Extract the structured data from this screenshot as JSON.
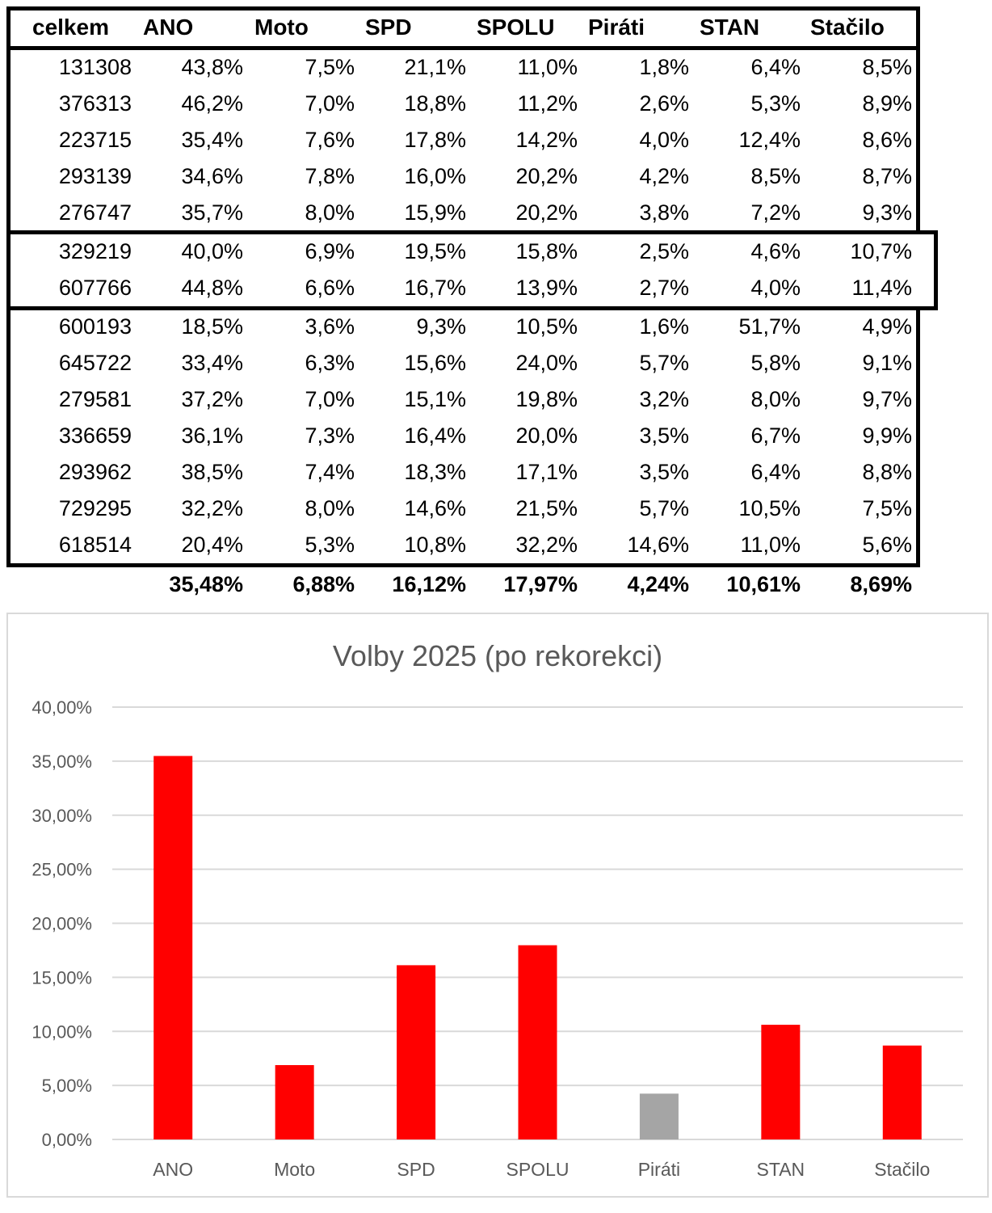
{
  "table": {
    "headers": [
      "celkem",
      "ANO",
      "Moto",
      "SPD",
      "SPOLU",
      "Piráti",
      "STAN",
      "Stačilo"
    ],
    "rows": [
      [
        "131308",
        "43,8%",
        "7,5%",
        "21,1%",
        "11,0%",
        "1,8%",
        "6,4%",
        "8,5%"
      ],
      [
        "376313",
        "46,2%",
        "7,0%",
        "18,8%",
        "11,2%",
        "2,6%",
        "5,3%",
        "8,9%"
      ],
      [
        "223715",
        "35,4%",
        "7,6%",
        "17,8%",
        "14,2%",
        "4,0%",
        "12,4%",
        "8,6%"
      ],
      [
        "293139",
        "34,6%",
        "7,8%",
        "16,0%",
        "20,2%",
        "4,2%",
        "8,5%",
        "8,7%"
      ],
      [
        "276747",
        "35,7%",
        "8,0%",
        "15,9%",
        "20,2%",
        "3,8%",
        "7,2%",
        "9,3%"
      ],
      [
        "329219",
        "40,0%",
        "6,9%",
        "19,5%",
        "15,8%",
        "2,5%",
        "4,6%",
        "10,7%"
      ],
      [
        "607766",
        "44,8%",
        "6,6%",
        "16,7%",
        "13,9%",
        "2,7%",
        "4,0%",
        "11,4%"
      ],
      [
        "600193",
        "18,5%",
        "3,6%",
        "9,3%",
        "10,5%",
        "1,6%",
        "51,7%",
        "4,9%"
      ],
      [
        "645722",
        "33,4%",
        "6,3%",
        "15,6%",
        "24,0%",
        "5,7%",
        "5,8%",
        "9,1%"
      ],
      [
        "279581",
        "37,2%",
        "7,0%",
        "15,1%",
        "19,8%",
        "3,2%",
        "8,0%",
        "9,7%"
      ],
      [
        "336659",
        "36,1%",
        "7,3%",
        "16,4%",
        "20,0%",
        "3,5%",
        "6,7%",
        "9,9%"
      ],
      [
        "293962",
        "38,5%",
        "7,4%",
        "18,3%",
        "17,1%",
        "3,5%",
        "6,4%",
        "8,8%"
      ],
      [
        "729295",
        "32,2%",
        "8,0%",
        "14,6%",
        "21,5%",
        "5,7%",
        "10,5%",
        "7,5%"
      ],
      [
        "618514",
        "20,4%",
        "5,3%",
        "10,8%",
        "32,2%",
        "14,6%",
        "11,0%",
        "5,6%"
      ]
    ],
    "totals": [
      "35,48%",
      "6,88%",
      "16,12%",
      "17,97%",
      "4,24%",
      "10,61%",
      "8,69%"
    ]
  },
  "chart_data": {
    "type": "bar",
    "title": "Volby 2025 (po rekorekci)",
    "categories": [
      "ANO",
      "Moto",
      "SPD",
      "SPOLU",
      "Piráti",
      "STAN",
      "Stačilo"
    ],
    "values": [
      35.48,
      6.88,
      16.12,
      17.97,
      4.24,
      10.61,
      8.69
    ],
    "colors": [
      "#ff0000",
      "#ff0000",
      "#ff0000",
      "#ff0000",
      "#a5a5a5",
      "#ff0000",
      "#ff0000"
    ],
    "ylim": [
      0,
      40
    ],
    "yticks": [
      0,
      5,
      10,
      15,
      20,
      25,
      30,
      35,
      40
    ],
    "ytick_labels": [
      "0,00%",
      "5,00%",
      "10,00%",
      "15,00%",
      "20,00%",
      "25,00%",
      "30,00%",
      "35,00%",
      "40,00%"
    ],
    "grid": true,
    "xlabel": "",
    "ylabel": ""
  }
}
